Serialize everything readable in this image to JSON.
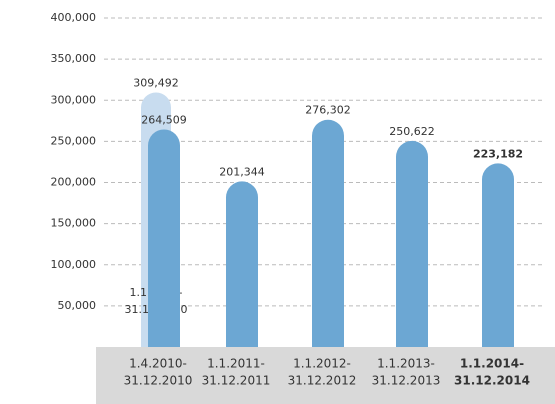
{
  "chart_data": {
    "type": "bar",
    "categories": [
      [
        "1.4.2010-",
        "31.12.2010"
      ],
      [
        "1.1.2011-",
        "31.12.2011"
      ],
      [
        "1.1.2012-",
        "31.12.2012"
      ],
      [
        "1.1.2013-",
        "31.12.2013"
      ],
      [
        "1.1.2014-",
        "31.12.2014"
      ]
    ],
    "values": [
      264509,
      201344,
      276302,
      250622,
      223182
    ],
    "value_labels": [
      "264,509",
      "201,344",
      "276,302",
      "250,622",
      "223,182"
    ],
    "color": "#6ca7d3",
    "bold_category": 4,
    "comparison": {
      "label": [
        "1.1.2010-",
        "31.12.2010"
      ],
      "value": 309492,
      "value_label": "309,492",
      "color": "#c8dcef",
      "category": 0
    },
    "ylim": [
      0,
      400000
    ],
    "yticks": [
      {
        "value": 50000,
        "label": "50,000"
      },
      {
        "value": 100000,
        "label": "100,000"
      },
      {
        "value": 150000,
        "label": "150,000"
      },
      {
        "value": 200000,
        "label": "200,000"
      },
      {
        "value": 250000,
        "label": "250,000"
      },
      {
        "value": 300000,
        "label": "300,000"
      },
      {
        "value": 350000,
        "label": "350,000"
      },
      {
        "value": 400000,
        "label": "400,000"
      }
    ],
    "grid": true
  }
}
